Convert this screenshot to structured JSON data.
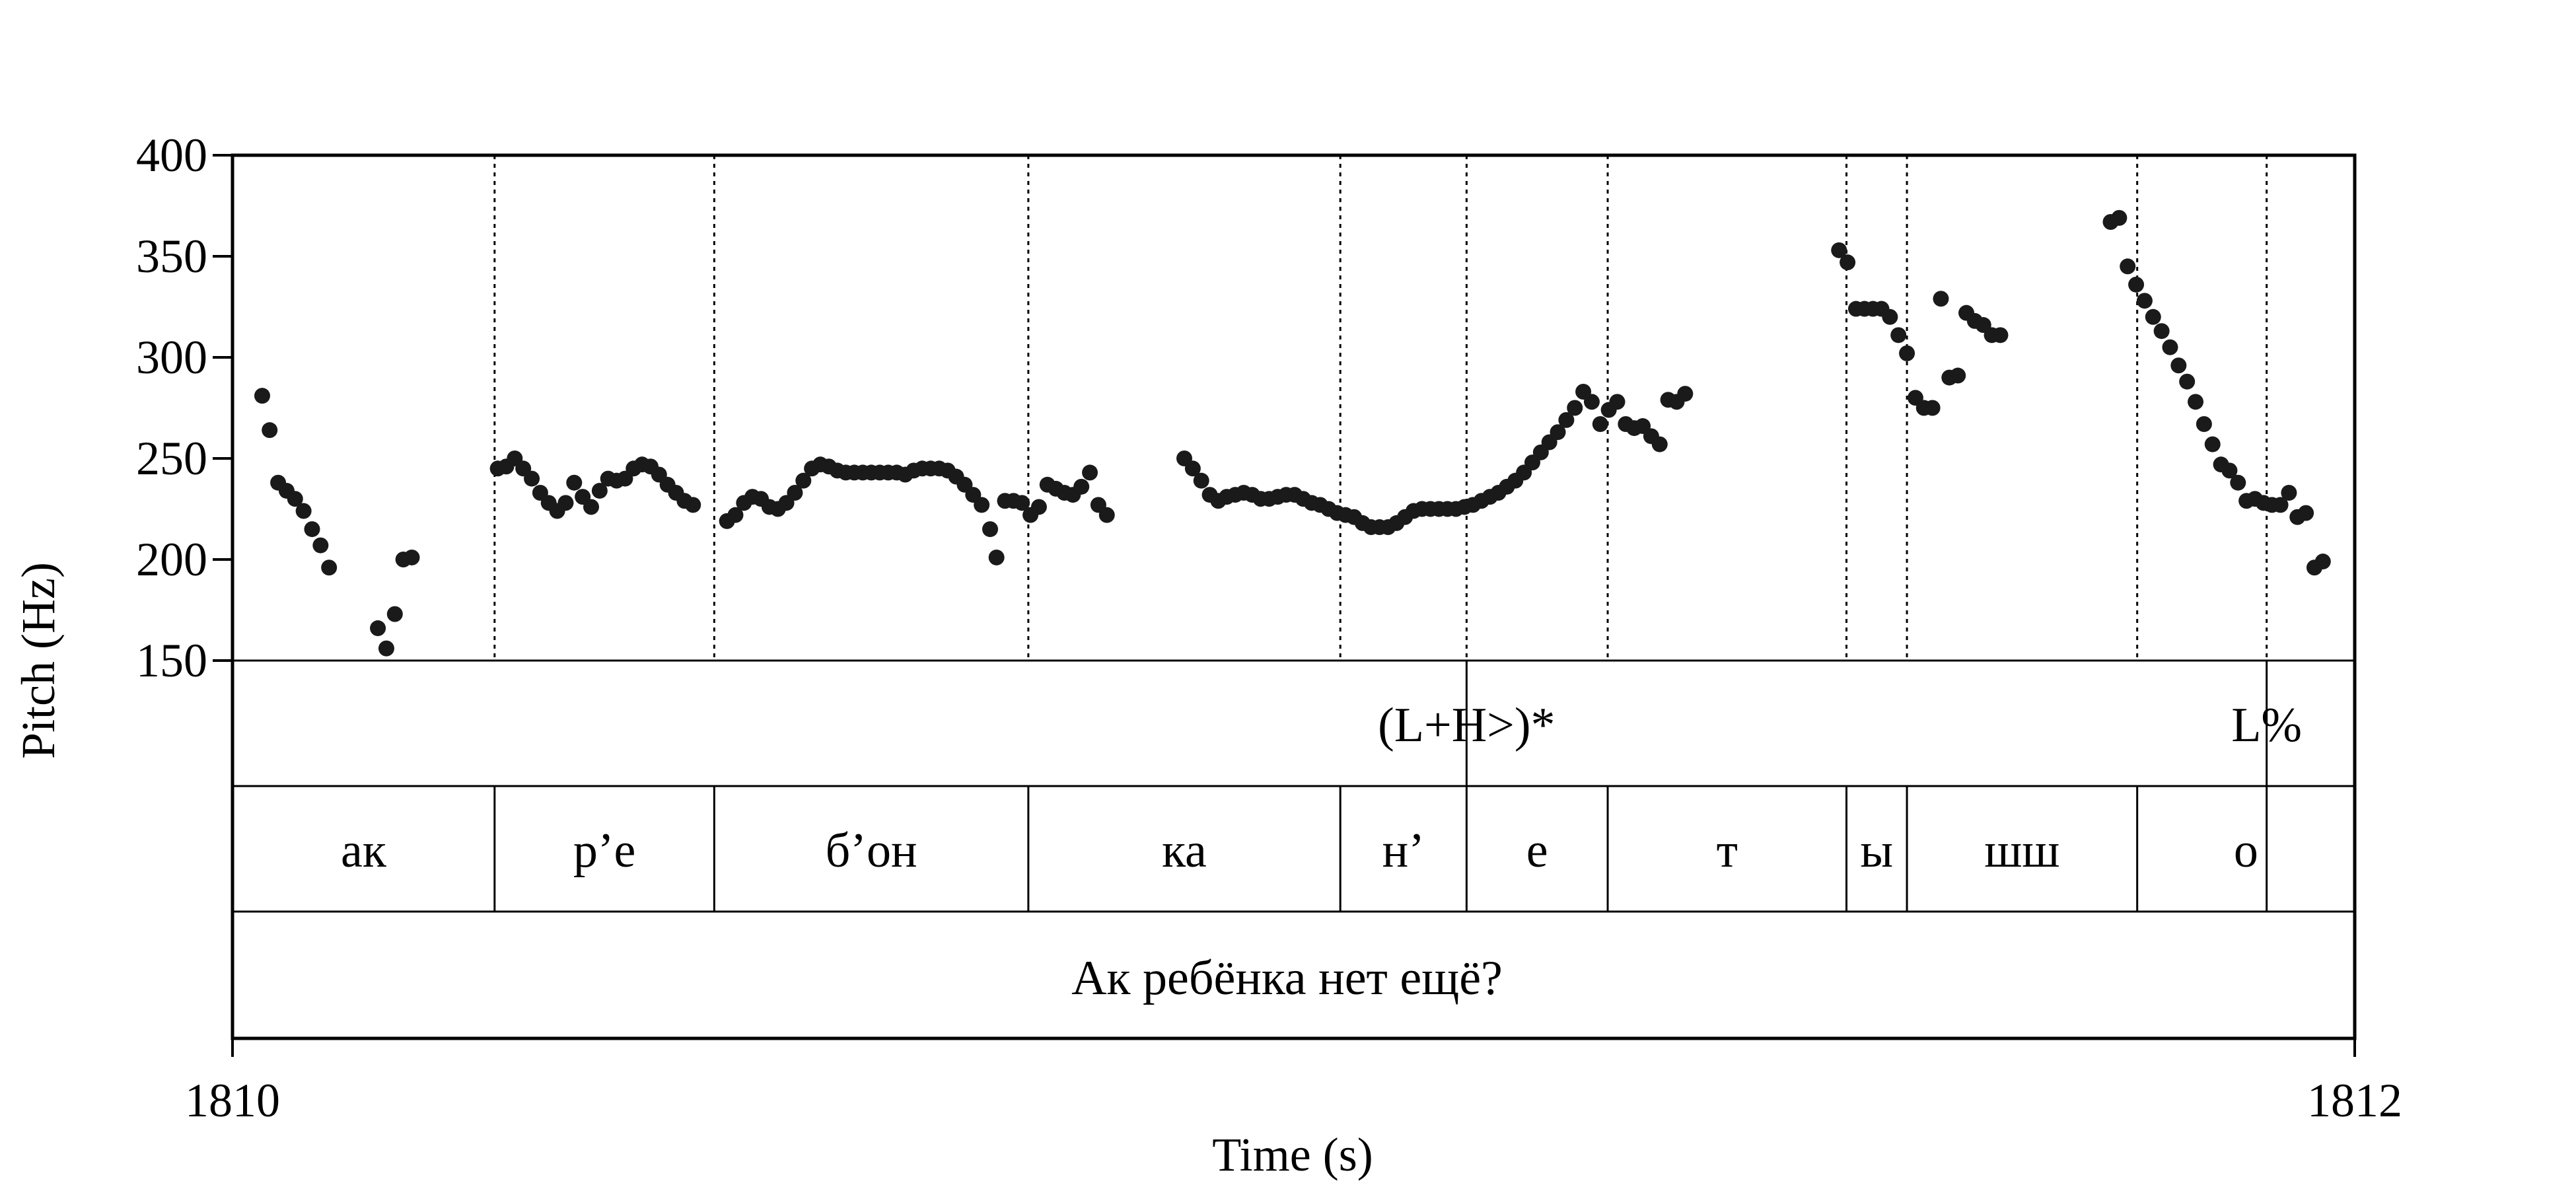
{
  "chart_data": {
    "type": "scatter",
    "xlabel": "Time (s)",
    "ylabel": "Pitch (Hz)",
    "xlim": [
      1810,
      1812
    ],
    "ylim": [
      150,
      400
    ],
    "x_tick_labels": [
      "1810",
      "1812"
    ],
    "y_ticks": [
      150,
      200,
      250,
      300,
      350,
      400
    ],
    "y_tick_labels": [
      "150",
      "200",
      "250",
      "300",
      "350",
      "400"
    ],
    "grid": false,
    "legend": "none",
    "point_color": "#1a1a1a",
    "boundaries": [
      1810.247,
      1810.454,
      1810.75,
      1811.044,
      1811.163,
      1811.296,
      1811.521,
      1811.578,
      1811.795,
      1811.917
    ],
    "tones": [
      {
        "label": "(L+H>)*",
        "time": 1811.163
      },
      {
        "label": "L%",
        "time": 1811.917
      }
    ],
    "segments": [
      {
        "label": "ак",
        "start": 1810.0,
        "end": 1810.247
      },
      {
        "label": "р’е",
        "start": 1810.247,
        "end": 1810.454
      },
      {
        "label": "б’он",
        "start": 1810.454,
        "end": 1810.75
      },
      {
        "label": "ка",
        "start": 1810.75,
        "end": 1811.044
      },
      {
        "label": "н’",
        "start": 1811.044,
        "end": 1811.163
      },
      {
        "label": "е",
        "start": 1811.163,
        "end": 1811.296
      },
      {
        "label": "т",
        "start": 1811.296,
        "end": 1811.521
      },
      {
        "label": "ы",
        "start": 1811.521,
        "end": 1811.578
      },
      {
        "label": "шш",
        "start": 1811.578,
        "end": 1811.795
      },
      {
        "label": "о",
        "start": 1811.795,
        "end": 1812.0
      }
    ],
    "sentence": "Ак ребёнка нет ещё?",
    "series": [
      {
        "points": [
          [
            1810.028,
            281
          ],
          [
            1810.035,
            264
          ],
          [
            1810.043,
            238
          ],
          [
            1810.051,
            234
          ],
          [
            1810.059,
            230
          ],
          [
            1810.067,
            224
          ],
          [
            1810.075,
            215
          ],
          [
            1810.083,
            207
          ],
          [
            1810.091,
            196
          ],
          [
            1810.137,
            166
          ],
          [
            1810.145,
            156
          ],
          [
            1810.153,
            173
          ],
          [
            1810.161,
            200
          ],
          [
            1810.169,
            201
          ],
          [
            1810.25,
            245
          ],
          [
            1810.258,
            246
          ],
          [
            1810.266,
            250
          ],
          [
            1810.274,
            245
          ],
          [
            1810.282,
            240
          ],
          [
            1810.29,
            233
          ],
          [
            1810.298,
            228
          ],
          [
            1810.306,
            224
          ],
          [
            1810.314,
            228
          ],
          [
            1810.322,
            238
          ],
          [
            1810.33,
            231
          ],
          [
            1810.338,
            226
          ],
          [
            1810.346,
            234
          ],
          [
            1810.354,
            240
          ],
          [
            1810.362,
            239
          ],
          [
            1810.37,
            240
          ],
          [
            1810.378,
            245
          ],
          [
            1810.386,
            247
          ],
          [
            1810.394,
            246
          ],
          [
            1810.402,
            242
          ],
          [
            1810.41,
            237
          ],
          [
            1810.418,
            233
          ],
          [
            1810.426,
            229
          ],
          [
            1810.434,
            227
          ],
          [
            1810.466,
            219
          ],
          [
            1810.474,
            222
          ],
          [
            1810.482,
            228
          ],
          [
            1810.49,
            231
          ],
          [
            1810.498,
            230
          ],
          [
            1810.506,
            226
          ],
          [
            1810.514,
            225
          ],
          [
            1810.522,
            228
          ],
          [
            1810.53,
            233
          ],
          [
            1810.538,
            239
          ],
          [
            1810.546,
            245
          ],
          [
            1810.554,
            247
          ],
          [
            1810.562,
            246
          ],
          [
            1810.57,
            244
          ],
          [
            1810.578,
            243
          ],
          [
            1810.586,
            243
          ],
          [
            1810.594,
            243
          ],
          [
            1810.602,
            243
          ],
          [
            1810.61,
            243
          ],
          [
            1810.618,
            243
          ],
          [
            1810.626,
            243
          ],
          [
            1810.634,
            242
          ],
          [
            1810.642,
            244
          ],
          [
            1810.65,
            245
          ],
          [
            1810.658,
            245
          ],
          [
            1810.666,
            245
          ],
          [
            1810.674,
            244
          ],
          [
            1810.682,
            241
          ],
          [
            1810.69,
            237
          ],
          [
            1810.698,
            232
          ],
          [
            1810.706,
            227
          ],
          [
            1810.714,
            215
          ],
          [
            1810.72,
            201
          ],
          [
            1810.728,
            229
          ],
          [
            1810.736,
            229
          ],
          [
            1810.744,
            228
          ],
          [
            1810.752,
            222
          ],
          [
            1810.76,
            226
          ],
          [
            1810.768,
            237
          ],
          [
            1810.776,
            235
          ],
          [
            1810.784,
            233
          ],
          [
            1810.792,
            232
          ],
          [
            1810.8,
            236
          ],
          [
            1810.808,
            243
          ],
          [
            1810.816,
            227
          ],
          [
            1810.824,
            222
          ],
          [
            1810.897,
            250
          ],
          [
            1810.905,
            245
          ],
          [
            1810.913,
            239
          ],
          [
            1810.921,
            232
          ],
          [
            1810.929,
            229
          ],
          [
            1810.937,
            231
          ],
          [
            1810.945,
            232
          ],
          [
            1810.953,
            233
          ],
          [
            1810.961,
            232
          ],
          [
            1810.969,
            230
          ],
          [
            1810.977,
            230
          ],
          [
            1810.985,
            231
          ],
          [
            1810.993,
            232
          ],
          [
            1811.001,
            232
          ],
          [
            1811.009,
            230
          ],
          [
            1811.017,
            228
          ],
          [
            1811.025,
            227
          ],
          [
            1811.033,
            225
          ],
          [
            1811.041,
            223
          ],
          [
            1811.049,
            222
          ],
          [
            1811.057,
            221
          ],
          [
            1811.065,
            218
          ],
          [
            1811.073,
            216
          ],
          [
            1811.081,
            216
          ],
          [
            1811.089,
            216
          ],
          [
            1811.097,
            218
          ],
          [
            1811.105,
            221
          ],
          [
            1811.113,
            224
          ],
          [
            1811.121,
            225
          ],
          [
            1811.129,
            225
          ],
          [
            1811.137,
            225
          ],
          [
            1811.145,
            225
          ],
          [
            1811.153,
            225
          ],
          [
            1811.161,
            226
          ],
          [
            1811.169,
            227
          ],
          [
            1811.177,
            229
          ],
          [
            1811.185,
            231
          ],
          [
            1811.193,
            233
          ],
          [
            1811.201,
            236
          ],
          [
            1811.209,
            239
          ],
          [
            1811.217,
            243
          ],
          [
            1811.225,
            248
          ],
          [
            1811.233,
            253
          ],
          [
            1811.241,
            258
          ],
          [
            1811.249,
            263
          ],
          [
            1811.257,
            269
          ],
          [
            1811.265,
            275
          ],
          [
            1811.273,
            283
          ],
          [
            1811.281,
            278
          ],
          [
            1811.289,
            267
          ],
          [
            1811.297,
            274
          ],
          [
            1811.305,
            278
          ],
          [
            1811.313,
            267
          ],
          [
            1811.321,
            265
          ],
          [
            1811.329,
            266
          ],
          [
            1811.337,
            261
          ],
          [
            1811.345,
            257
          ],
          [
            1811.353,
            279
          ],
          [
            1811.361,
            278
          ],
          [
            1811.369,
            282
          ],
          [
            1811.514,
            353
          ],
          [
            1811.522,
            347
          ],
          [
            1811.53,
            324
          ],
          [
            1811.538,
            324
          ],
          [
            1811.546,
            324
          ],
          [
            1811.554,
            324
          ],
          [
            1811.562,
            320
          ],
          [
            1811.57,
            311
          ],
          [
            1811.578,
            302
          ],
          [
            1811.586,
            280
          ],
          [
            1811.594,
            275
          ],
          [
            1811.602,
            275
          ],
          [
            1811.61,
            329
          ],
          [
            1811.618,
            290
          ],
          [
            1811.626,
            291
          ],
          [
            1811.634,
            322
          ],
          [
            1811.642,
            318
          ],
          [
            1811.65,
            316
          ],
          [
            1811.658,
            311
          ],
          [
            1811.666,
            311
          ],
          [
            1811.77,
            367
          ],
          [
            1811.778,
            369
          ],
          [
            1811.786,
            345
          ],
          [
            1811.794,
            336
          ],
          [
            1811.802,
            328
          ],
          [
            1811.81,
            320
          ],
          [
            1811.818,
            313
          ],
          [
            1811.826,
            305
          ],
          [
            1811.834,
            296
          ],
          [
            1811.842,
            288
          ],
          [
            1811.85,
            278
          ],
          [
            1811.858,
            267
          ],
          [
            1811.866,
            257
          ],
          [
            1811.874,
            247
          ],
          [
            1811.882,
            244
          ],
          [
            1811.89,
            238
          ],
          [
            1811.898,
            229
          ],
          [
            1811.906,
            230
          ],
          [
            1811.914,
            228
          ],
          [
            1811.922,
            227
          ],
          [
            1811.93,
            227
          ],
          [
            1811.938,
            233
          ],
          [
            1811.946,
            221
          ],
          [
            1811.954,
            223
          ],
          [
            1811.962,
            196
          ],
          [
            1811.97,
            199
          ]
        ]
      }
    ]
  }
}
